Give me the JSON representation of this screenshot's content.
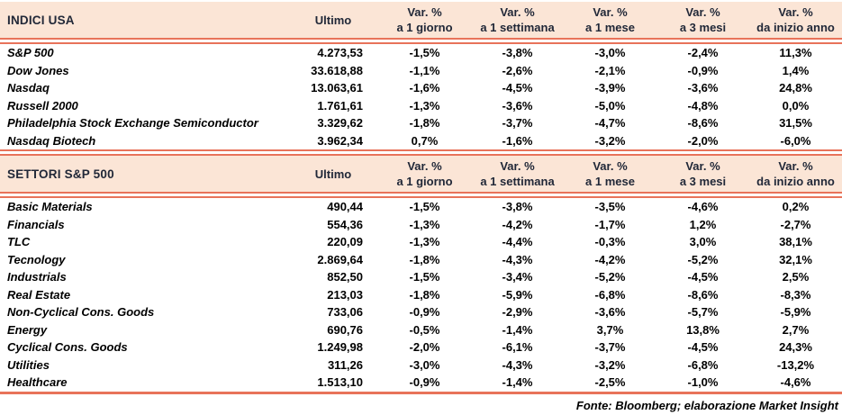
{
  "colors": {
    "accent_line": "#E8735A",
    "header_background": "#FBE5D6",
    "header_text": "#212838",
    "body_text": "#000000"
  },
  "footer": {
    "source": "Fonte: Bloomberg; elaborazione Market Insight"
  },
  "tables": [
    {
      "title": "INDICI USA",
      "ultimo_label": "Ultimo",
      "columns": [
        {
          "line1": "Var. %",
          "line2": "a 1 giorno"
        },
        {
          "line1": "Var. %",
          "line2": "a 1 settimana"
        },
        {
          "line1": "Var. %",
          "line2": "a 1 mese"
        },
        {
          "line1": "Var. %",
          "line2": "a 3 mesi"
        },
        {
          "line1": "Var. %",
          "line2": "da inizio anno"
        }
      ],
      "rows": [
        {
          "name": "S&P 500",
          "ultimo": "4.273,53",
          "values": [
            "-1,5%",
            "-3,8%",
            "-3,0%",
            "-2,4%",
            "11,3%"
          ]
        },
        {
          "name": "Dow Jones",
          "ultimo": "33.618,88",
          "values": [
            "-1,1%",
            "-2,6%",
            "-2,1%",
            "-0,9%",
            "1,4%"
          ]
        },
        {
          "name": "Nasdaq",
          "ultimo": "13.063,61",
          "values": [
            "-1,6%",
            "-4,5%",
            "-3,9%",
            "-3,6%",
            "24,8%"
          ]
        },
        {
          "name": "Russell 2000",
          "ultimo": "1.761,61",
          "values": [
            "-1,3%",
            "-3,6%",
            "-5,0%",
            "-4,8%",
            "0,0%"
          ]
        },
        {
          "name": "Philadelphia Stock Exchange Semiconductor",
          "ultimo": "3.329,62",
          "values": [
            "-1,8%",
            "-3,7%",
            "-4,7%",
            "-8,6%",
            "31,5%"
          ]
        },
        {
          "name": "Nasdaq Biotech",
          "ultimo": "3.962,34",
          "values": [
            "0,7%",
            "-1,6%",
            "-3,2%",
            "-2,0%",
            "-6,0%"
          ]
        }
      ]
    },
    {
      "title": "SETTORI S&P 500",
      "ultimo_label": "Ultimo",
      "columns": [
        {
          "line1": "Var. %",
          "line2": "a 1 giorno"
        },
        {
          "line1": "Var. %",
          "line2": "a 1 settimana"
        },
        {
          "line1": "Var. %",
          "line2": "a 1 mese"
        },
        {
          "line1": "Var. %",
          "line2": "a 3 mesi"
        },
        {
          "line1": "Var. %",
          "line2": "da inizio anno"
        }
      ],
      "rows": [
        {
          "name": "Basic Materials",
          "ultimo": "490,44",
          "values": [
            "-1,5%",
            "-3,8%",
            "-3,5%",
            "-4,6%",
            "0,2%"
          ]
        },
        {
          "name": "Financials",
          "ultimo": "554,36",
          "values": [
            "-1,3%",
            "-4,2%",
            "-1,7%",
            "1,2%",
            "-2,7%"
          ]
        },
        {
          "name": "TLC",
          "ultimo": "220,09",
          "values": [
            "-1,3%",
            "-4,4%",
            "-0,3%",
            "3,0%",
            "38,1%"
          ]
        },
        {
          "name": "Tecnology",
          "ultimo": "2.869,64",
          "values": [
            "-1,8%",
            "-4,3%",
            "-4,2%",
            "-5,2%",
            "32,1%"
          ]
        },
        {
          "name": "Industrials",
          "ultimo": "852,50",
          "values": [
            "-1,5%",
            "-3,4%",
            "-5,2%",
            "-4,5%",
            "2,5%"
          ]
        },
        {
          "name": "Real Estate",
          "ultimo": "213,03",
          "values": [
            "-1,8%",
            "-5,9%",
            "-6,8%",
            "-8,6%",
            "-8,3%"
          ]
        },
        {
          "name": "Non-Cyclical Cons. Goods",
          "ultimo": "733,06",
          "values": [
            "-0,9%",
            "-2,9%",
            "-3,6%",
            "-5,7%",
            "-5,9%"
          ]
        },
        {
          "name": "Energy",
          "ultimo": "690,76",
          "values": [
            "-0,5%",
            "-1,4%",
            "3,7%",
            "13,8%",
            "2,7%"
          ]
        },
        {
          "name": "Cyclical Cons. Goods",
          "ultimo": "1.249,98",
          "values": [
            "-2,0%",
            "-6,1%",
            "-3,7%",
            "-4,5%",
            "24,3%"
          ]
        },
        {
          "name": "Utilities",
          "ultimo": "311,26",
          "values": [
            "-3,0%",
            "-4,3%",
            "-3,2%",
            "-6,8%",
            "-13,2%"
          ]
        },
        {
          "name": "Healthcare",
          "ultimo": "1.513,10",
          "values": [
            "-0,9%",
            "-1,4%",
            "-2,5%",
            "-1,0%",
            "-4,6%"
          ]
        }
      ]
    }
  ]
}
